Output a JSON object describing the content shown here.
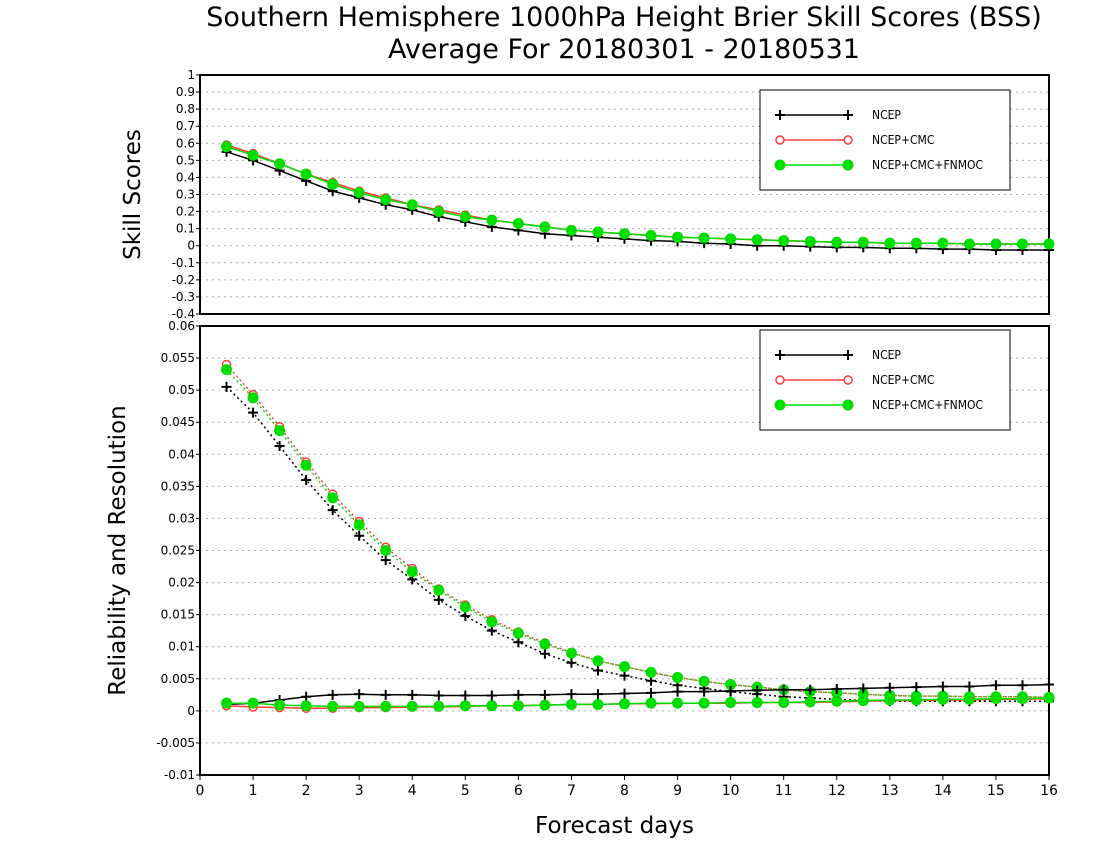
{
  "title_line1": "Southern Hemisphere 1000hPa Height Brier Skill Scores (BSS)",
  "title_line2": "Average For 20180301 - 20180531",
  "colors": {
    "ncep": "#000000",
    "ncep_cmc": "#ff3b3b",
    "ncep_cmc_fnmoc": "#00dd00",
    "grid": "#aaaaaa"
  },
  "chart_data": [
    {
      "type": "line",
      "ylabel": "Skill Scores",
      "xlabel": "",
      "ylim": [
        -0.4,
        1
      ],
      "xlim": [
        0,
        16
      ],
      "yticks": [
        "-0.4",
        "-0.3",
        "-0.2",
        "-0.1",
        "0",
        "0.1",
        "0.2",
        "0.3",
        "0.4",
        "0.5",
        "0.6",
        "0.7",
        "0.8",
        "0.9",
        "1"
      ],
      "grid": true,
      "legend_position": "top-right",
      "x": [
        0.5,
        1,
        1.5,
        2,
        2.5,
        3,
        3.5,
        4,
        4.5,
        5,
        5.5,
        6,
        6.5,
        7,
        7.5,
        8,
        8.5,
        9,
        9.5,
        10,
        10.5,
        11,
        11.5,
        12,
        12.5,
        13,
        13.5,
        14,
        14.5,
        15,
        15.5,
        16
      ],
      "series": [
        {
          "name": "NCEP",
          "marker": "plus",
          "values": [
            0.55,
            0.5,
            0.44,
            0.38,
            0.32,
            0.28,
            0.24,
            0.21,
            0.17,
            0.14,
            0.11,
            0.09,
            0.07,
            0.06,
            0.05,
            0.04,
            0.03,
            0.025,
            0.015,
            0.01,
            0.0,
            0.0,
            -0.005,
            -0.01,
            -0.01,
            -0.015,
            -0.015,
            -0.02,
            -0.02,
            -0.025,
            -0.025,
            -0.025
          ]
        },
        {
          "name": "NCEP+CMC",
          "marker": "open-circle",
          "values": [
            0.59,
            0.54,
            0.48,
            0.42,
            0.37,
            0.32,
            0.28,
            0.24,
            0.21,
            0.18,
            0.15,
            0.13,
            0.11,
            0.09,
            0.08,
            0.07,
            0.06,
            0.05,
            0.045,
            0.04,
            0.035,
            0.03,
            0.025,
            0.02,
            0.02,
            0.015,
            0.015,
            0.015,
            0.01,
            0.01,
            0.01,
            0.01
          ]
        },
        {
          "name": "NCEP+CMC+FNMOC",
          "marker": "filled-circle",
          "values": [
            0.58,
            0.53,
            0.48,
            0.42,
            0.36,
            0.31,
            0.27,
            0.24,
            0.2,
            0.17,
            0.15,
            0.13,
            0.11,
            0.09,
            0.08,
            0.07,
            0.06,
            0.05,
            0.045,
            0.04,
            0.035,
            0.03,
            0.025,
            0.02,
            0.02,
            0.015,
            0.015,
            0.015,
            0.01,
            0.01,
            0.01,
            0.01
          ]
        }
      ]
    },
    {
      "type": "line",
      "ylabel": "Reliability and Resolution",
      "xlabel": "Forecast days",
      "ylim": [
        -0.01,
        0.06
      ],
      "xlim": [
        0,
        16
      ],
      "yticks": [
        "-0.01",
        "-0.005",
        "0",
        "0.005",
        "0.01",
        "0.015",
        "0.02",
        "0.025",
        "0.03",
        "0.035",
        "0.04",
        "0.045",
        "0.05",
        "0.055",
        "0.06"
      ],
      "xticks": [
        "0",
        "1",
        "2",
        "3",
        "4",
        "5",
        "6",
        "7",
        "8",
        "9",
        "10",
        "11",
        "12",
        "13",
        "14",
        "15",
        "16"
      ],
      "grid": true,
      "legend_position": "top-right",
      "x": [
        0.5,
        1,
        1.5,
        2,
        2.5,
        3,
        3.5,
        4,
        4.5,
        5,
        5.5,
        6,
        6.5,
        7,
        7.5,
        8,
        8.5,
        9,
        9.5,
        10,
        10.5,
        11,
        11.5,
        12,
        12.5,
        13,
        13.5,
        14,
        14.5,
        15,
        15.5,
        16
      ],
      "series": [
        {
          "name": "NCEP",
          "marker": "plus",
          "line": "dotted",
          "group": "resolution",
          "values": [
            0.0505,
            0.0465,
            0.0413,
            0.036,
            0.0313,
            0.0273,
            0.0235,
            0.0205,
            0.0173,
            0.0148,
            0.0125,
            0.0107,
            0.0089,
            0.0075,
            0.0063,
            0.0055,
            0.0047,
            0.004,
            0.0035,
            0.003,
            0.0026,
            0.0022,
            0.002,
            0.0018,
            0.0016,
            0.0015,
            0.0015,
            0.0015,
            0.0015,
            0.0015,
            0.0015,
            0.0015
          ]
        },
        {
          "name": "NCEP+CMC",
          "marker": "open-circle",
          "line": "dotted",
          "group": "resolution",
          "values": [
            0.054,
            0.0493,
            0.0443,
            0.0388,
            0.0338,
            0.0295,
            0.0255,
            0.0222,
            0.019,
            0.0165,
            0.0142,
            0.0123,
            0.0106,
            0.0091,
            0.0078,
            0.0069,
            0.006,
            0.0052,
            0.0046,
            0.0041,
            0.0037,
            0.0033,
            0.003,
            0.0028,
            0.0026,
            0.0024,
            0.0023,
            0.0023,
            0.0022,
            0.0022,
            0.0022,
            0.0021
          ]
        },
        {
          "name": "NCEP+CMC+FNMOC",
          "marker": "filled-circle",
          "line": "dotted",
          "group": "resolution",
          "values": [
            0.0532,
            0.0488,
            0.0437,
            0.0383,
            0.0332,
            0.029,
            0.025,
            0.0217,
            0.0188,
            0.0162,
            0.0139,
            0.0121,
            0.0104,
            0.009,
            0.0078,
            0.0069,
            0.006,
            0.0052,
            0.0046,
            0.0041,
            0.0037,
            0.0033,
            0.003,
            0.0028,
            0.0026,
            0.0024,
            0.0023,
            0.0023,
            0.0022,
            0.0022,
            0.0022,
            0.0021
          ]
        },
        {
          "name": "NCEP",
          "marker": "plus",
          "line": "solid",
          "group": "reliability",
          "values": [
            0.001,
            0.0012,
            0.0017,
            0.0022,
            0.0025,
            0.0026,
            0.0025,
            0.0025,
            0.0024,
            0.0024,
            0.0024,
            0.0025,
            0.0025,
            0.0026,
            0.0026,
            0.0027,
            0.0028,
            0.003,
            0.003,
            0.0031,
            0.0032,
            0.0033,
            0.0033,
            0.0034,
            0.0035,
            0.0036,
            0.0037,
            0.0038,
            0.0038,
            0.004,
            0.004,
            0.0041
          ]
        },
        {
          "name": "NCEP+CMC",
          "marker": "open-circle",
          "line": "solid",
          "group": "reliability",
          "values": [
            0.0008,
            0.0006,
            0.0005,
            0.0004,
            0.0004,
            0.0005,
            0.0005,
            0.0006,
            0.0006,
            0.0007,
            0.0008,
            0.0008,
            0.0009,
            0.001,
            0.001,
            0.0011,
            0.0011,
            0.0012,
            0.0012,
            0.0012,
            0.0013,
            0.0013,
            0.0013,
            0.0014,
            0.0015,
            0.0016,
            0.0016,
            0.0017,
            0.0017,
            0.0018,
            0.0018,
            0.0019
          ]
        },
        {
          "name": "NCEP+CMC+FNMOC",
          "marker": "filled-circle",
          "line": "solid",
          "group": "reliability",
          "values": [
            0.0012,
            0.0012,
            0.0009,
            0.0008,
            0.0007,
            0.0007,
            0.0007,
            0.0007,
            0.0007,
            0.0008,
            0.0008,
            0.0008,
            0.0009,
            0.001,
            0.001,
            0.0011,
            0.0012,
            0.0012,
            0.0012,
            0.0013,
            0.0013,
            0.0013,
            0.0014,
            0.0015,
            0.0016,
            0.0017,
            0.0017,
            0.0018,
            0.0018,
            0.0019,
            0.0019,
            0.002
          ]
        }
      ]
    }
  ]
}
